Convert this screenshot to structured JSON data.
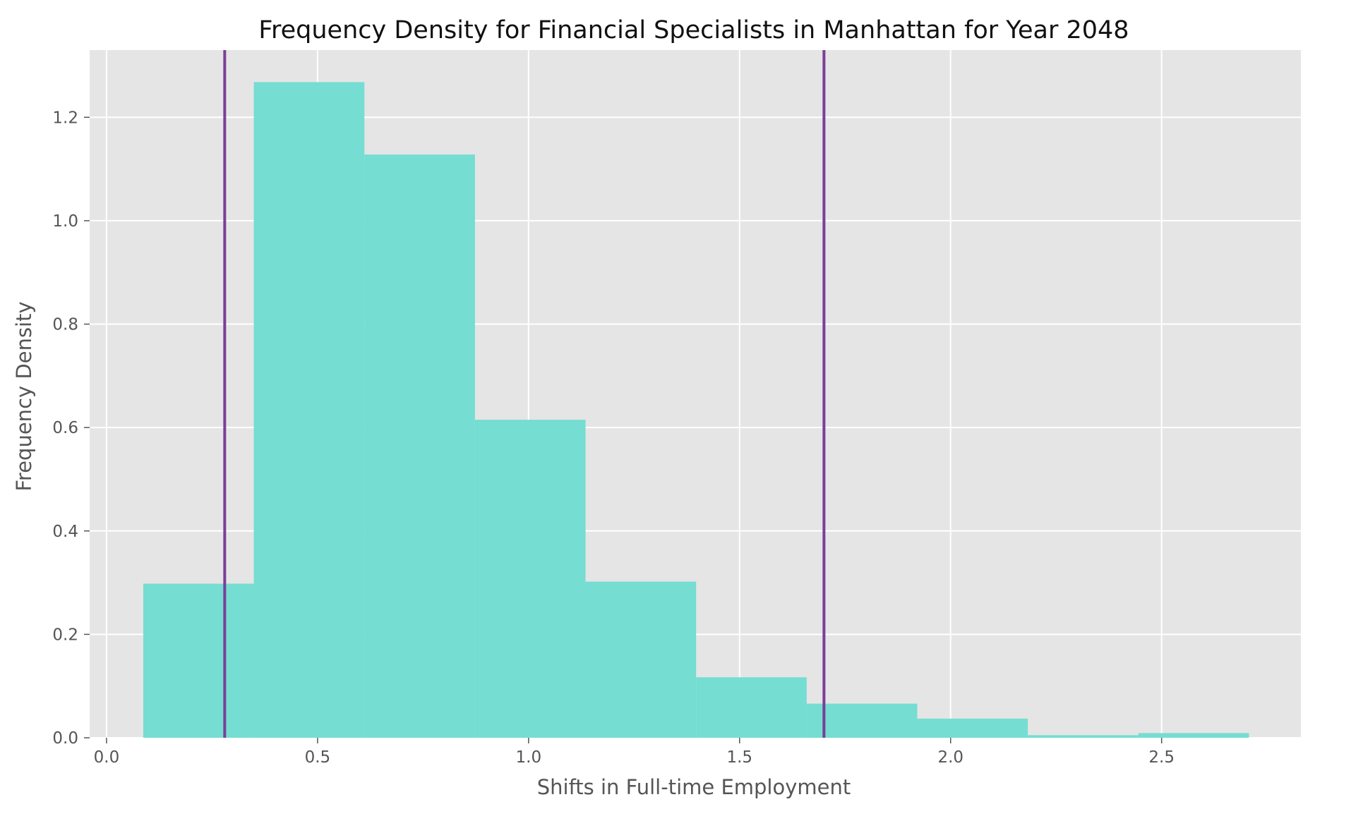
{
  "chart_data": {
    "type": "histogram",
    "title": "Frequency Density for Financial Specialists in Manhattan for Year 2048",
    "xlabel": "Shifts in Full-time Employment",
    "ylabel": "Frequency Density",
    "xlim": [
      -0.04,
      2.83
    ],
    "ylim": [
      0,
      1.33
    ],
    "xticks": [
      0.0,
      0.5,
      1.0,
      1.5,
      2.0,
      2.5
    ],
    "xtick_labels": [
      "0.0",
      "0.5",
      "1.0",
      "1.5",
      "2.0",
      "2.5"
    ],
    "yticks": [
      0.0,
      0.2,
      0.4,
      0.6,
      0.8,
      1.0,
      1.2
    ],
    "ytick_labels": [
      "0.0",
      "0.2",
      "0.4",
      "0.6",
      "0.8",
      "1.0",
      "1.2"
    ],
    "bins": [
      {
        "start": 0.087,
        "end": 0.349,
        "value": 0.298
      },
      {
        "start": 0.349,
        "end": 0.611,
        "value": 1.268
      },
      {
        "start": 0.611,
        "end": 0.873,
        "value": 1.128
      },
      {
        "start": 0.873,
        "end": 1.135,
        "value": 0.615
      },
      {
        "start": 1.135,
        "end": 1.397,
        "value": 0.302
      },
      {
        "start": 1.397,
        "end": 1.659,
        "value": 0.117
      },
      {
        "start": 1.659,
        "end": 1.921,
        "value": 0.066
      },
      {
        "start": 1.921,
        "end": 2.183,
        "value": 0.037
      },
      {
        "start": 2.183,
        "end": 2.445,
        "value": 0.005
      },
      {
        "start": 2.445,
        "end": 2.707,
        "value": 0.009
      }
    ],
    "vertical_lines": [
      0.28,
      1.7
    ],
    "grid": true,
    "colors": {
      "background": "#e5e5e5",
      "bars": "#75ddd1",
      "vlines": "#7b3f98",
      "grid": "#ffffff"
    }
  }
}
